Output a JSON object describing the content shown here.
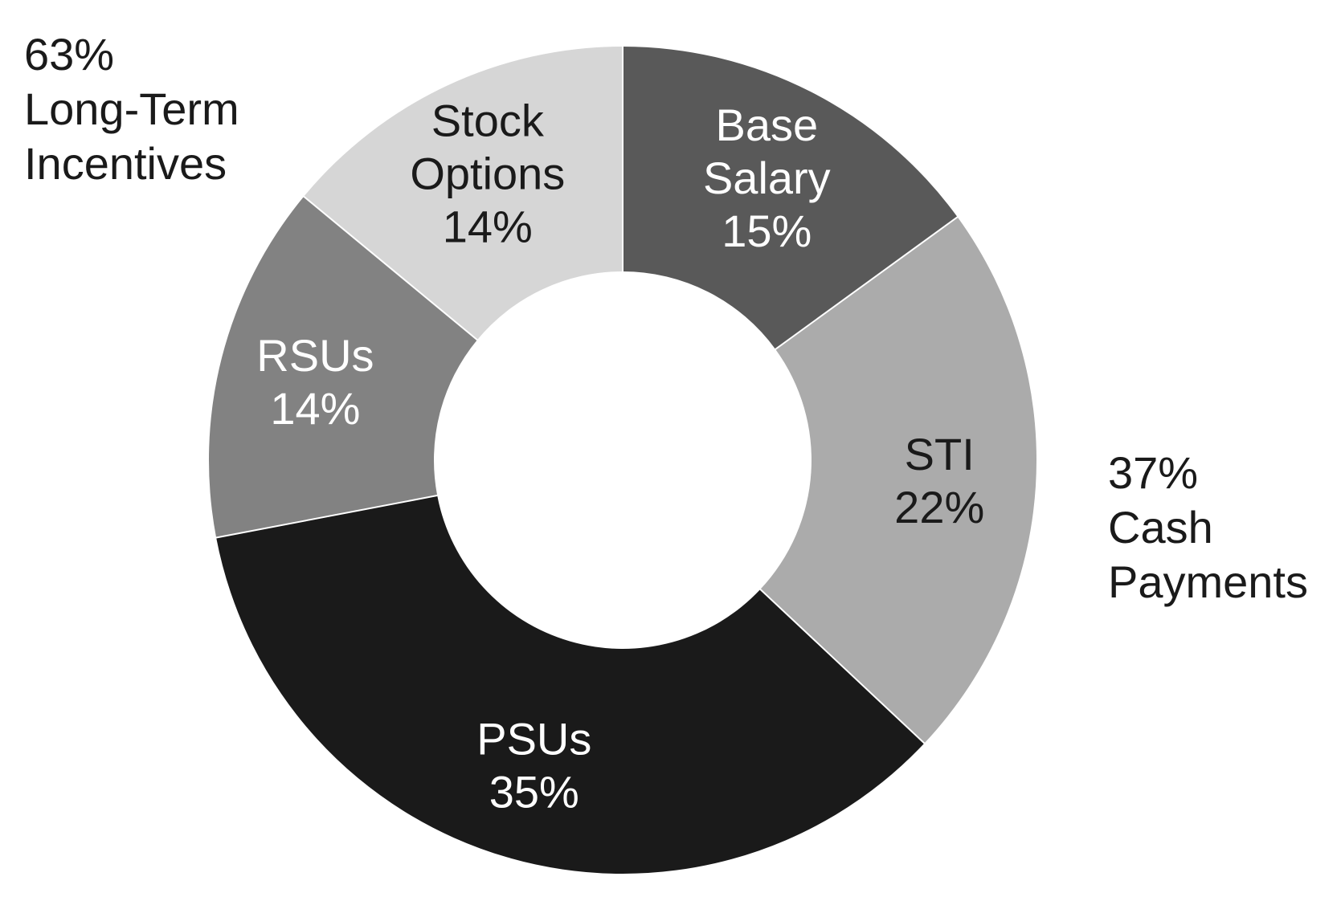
{
  "chart_data": {
    "type": "pie",
    "donut": true,
    "legend": "none",
    "slices": [
      {
        "label": [
          "Base",
          "Salary"
        ],
        "value": 15,
        "value_label": "15%",
        "color": "#595959",
        "text_color": "#ffffff"
      },
      {
        "label": [
          "STI"
        ],
        "value": 22,
        "value_label": "22%",
        "color": "#ababab",
        "text_color": "#1a1a1a"
      },
      {
        "label": [
          "PSUs"
        ],
        "value": 35,
        "value_label": "35%",
        "color": "#1a1a1a",
        "text_color": "#ffffff"
      },
      {
        "label": [
          "RSUs"
        ],
        "value": 14,
        "value_label": "14%",
        "color": "#828282",
        "text_color": "#ffffff"
      },
      {
        "label": [
          "Stock",
          "Options"
        ],
        "value": 14,
        "value_label": "14%",
        "color": "#d6d6d6",
        "text_color": "#1a1a1a"
      }
    ],
    "groups": [
      {
        "id": "lti",
        "lines": [
          "63%",
          "Long-Term",
          "Incentives"
        ]
      },
      {
        "id": "cash",
        "lines": [
          "37%",
          "Cash",
          "Payments"
        ]
      }
    ]
  }
}
